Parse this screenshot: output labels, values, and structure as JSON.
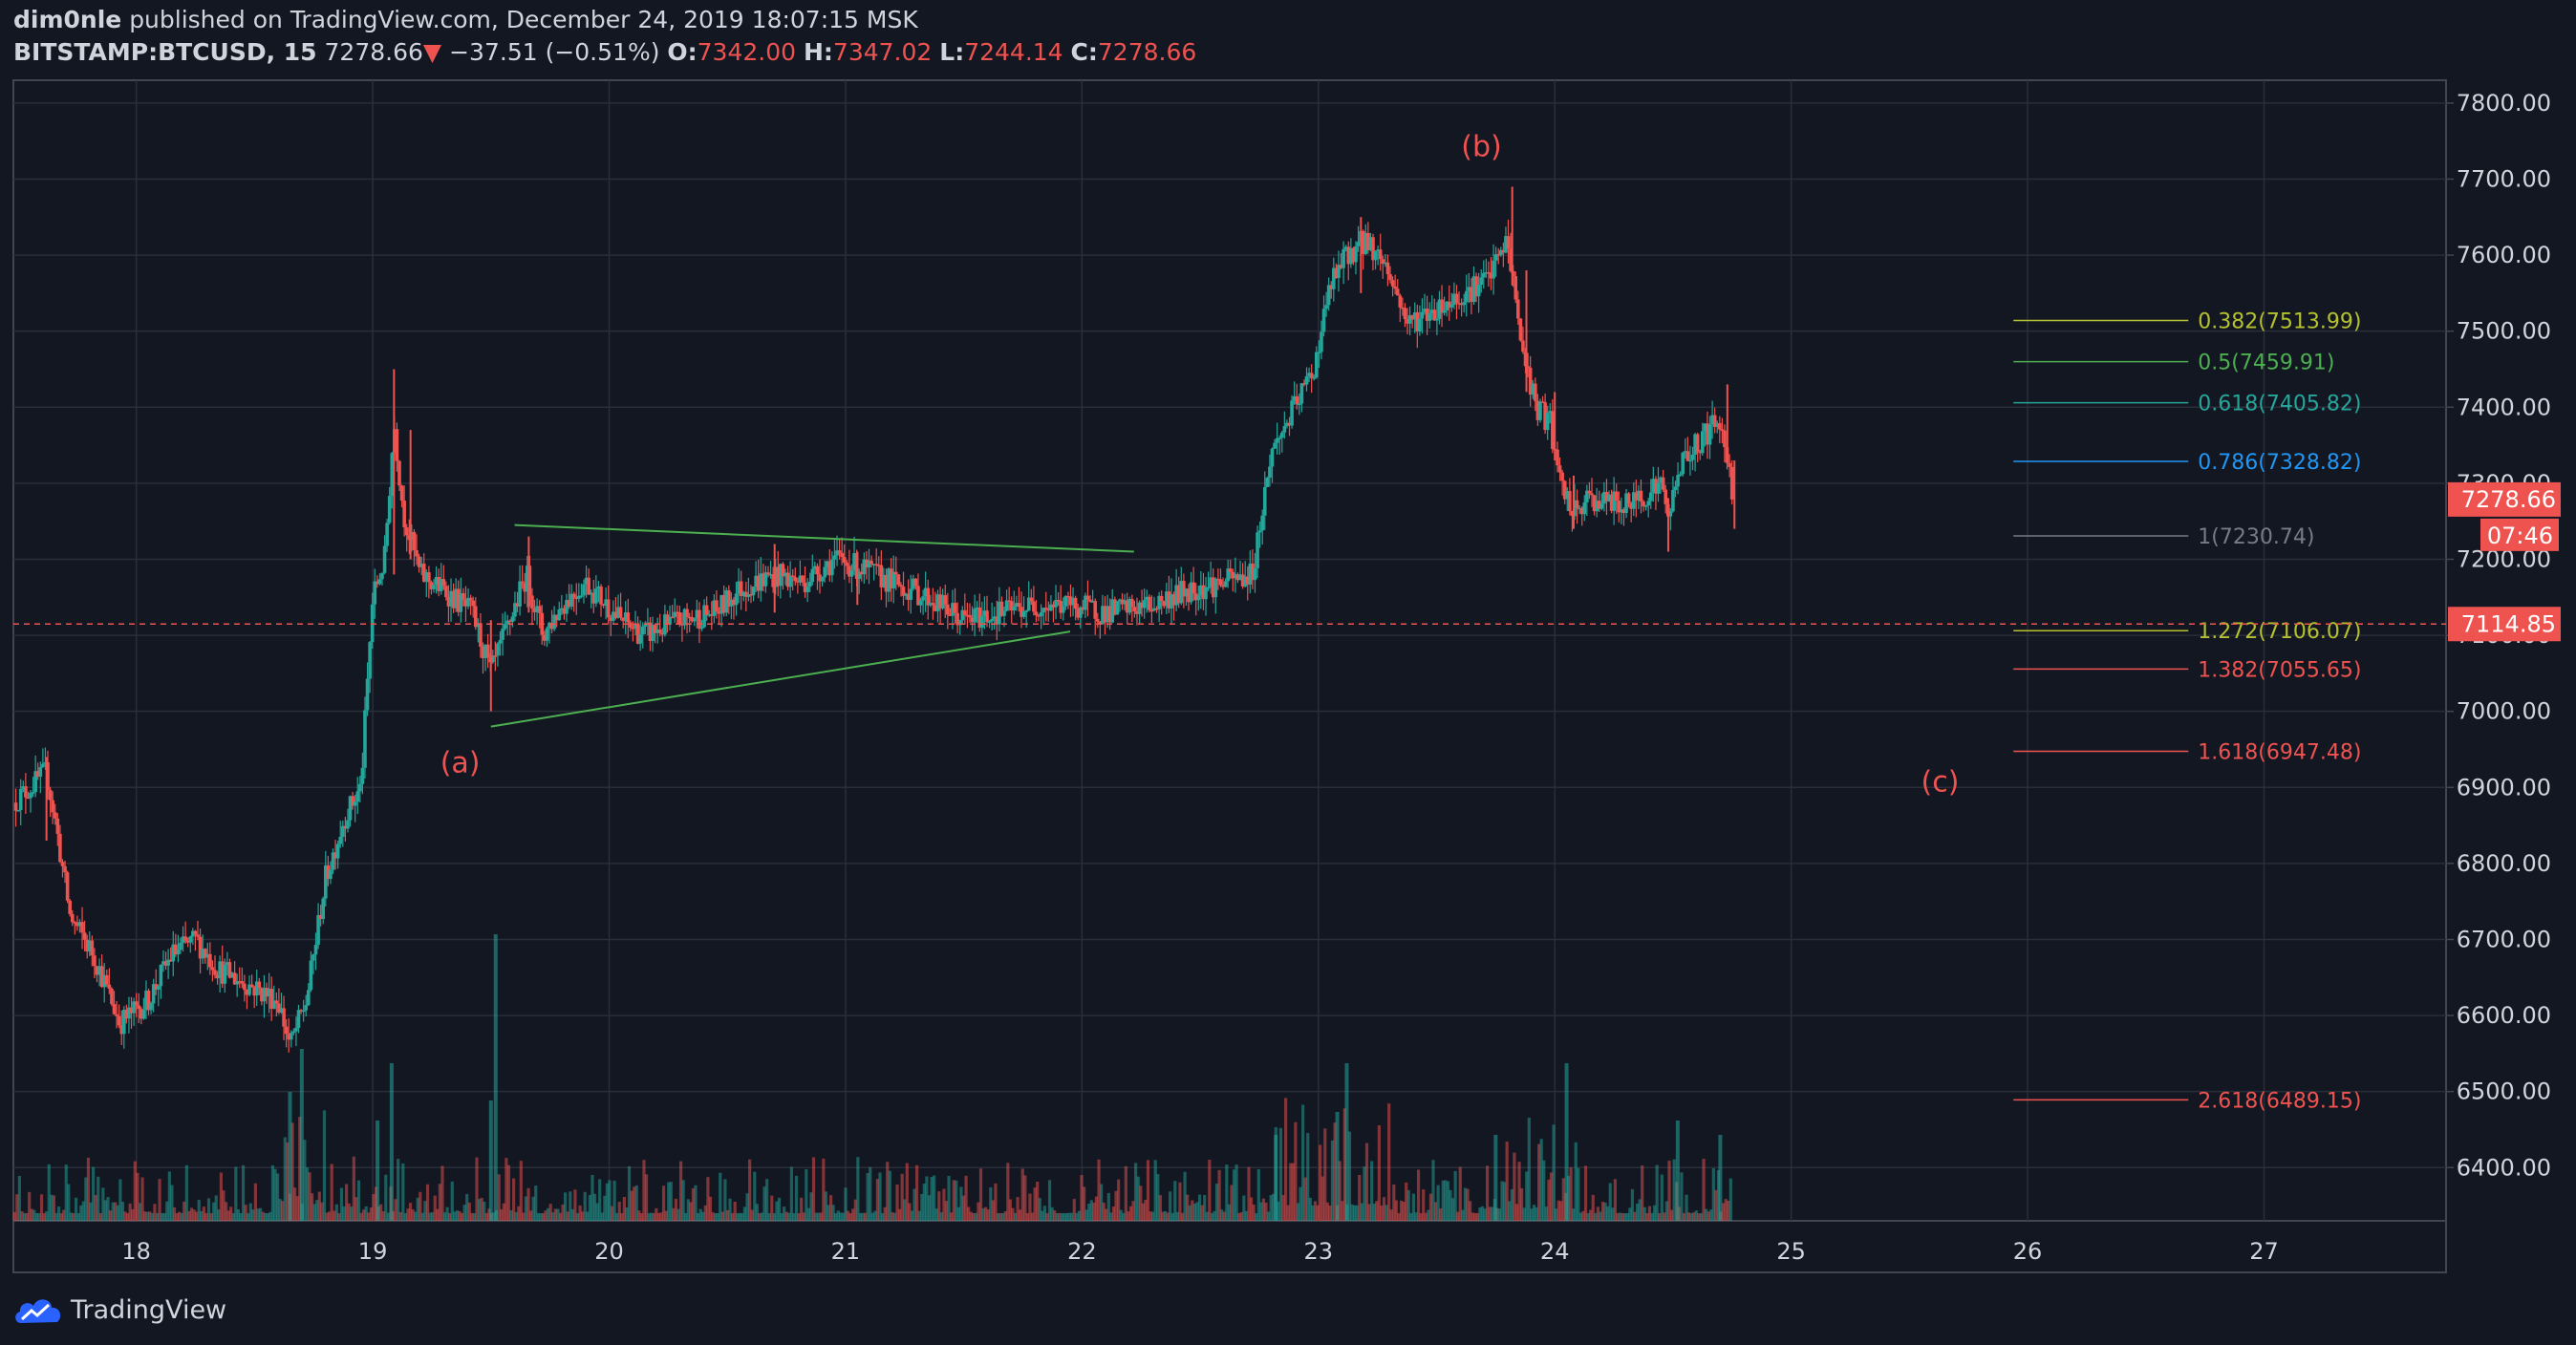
{
  "header": {
    "author": "dim0nle",
    "published_text": "published on TradingView.com, December 24, 2019 18:07:15 MSK",
    "symbol": "BITSTAMP:BTCUSD, 15",
    "last": "7278.66",
    "change_arrow": "▼",
    "change": "−37.51 (−0.51%)",
    "o_label": "O:",
    "o_value": "7342.00",
    "h_label": "H:",
    "h_value": "7347.02",
    "l_label": "L:",
    "l_value": "7244.14",
    "c_label": "C:",
    "c_value": "7278.66"
  },
  "logo": {
    "text": "TradingView",
    "icon": "tradingview-cloud-icon"
  },
  "colors": {
    "background": "#131722",
    "grid": "#2a2e39",
    "up": "#26a69a",
    "down": "#ef5350",
    "text": "#d1d4dc",
    "price_line": "#ef5350",
    "trendline": "#4caf50"
  },
  "chart_data": {
    "type": "candlestick",
    "grid": true,
    "ylim": [
      6330,
      7830
    ],
    "xlim": [
      17.48,
      27.77
    ],
    "x_ticks": [
      18,
      19,
      20,
      21,
      22,
      23,
      24,
      25,
      26,
      27
    ],
    "x_tick_labels": [
      "18",
      "19",
      "20",
      "21",
      "22",
      "23",
      "24",
      "25",
      "26",
      "27"
    ],
    "y_ticks": [
      6400,
      6500,
      6600,
      6700,
      6800,
      6900,
      7000,
      7100,
      7200,
      7300,
      7400,
      7500,
      7600,
      7700,
      7800
    ],
    "y_tick_labels": [
      "6400.00",
      "6500.00",
      "6600.00",
      "6700.00",
      "6800.00",
      "6900.00",
      "7000.00",
      "7100.00",
      "7200.00",
      "7300.00",
      "7400.00",
      "7500.00",
      "7600.00",
      "7700.00",
      "7800.00"
    ],
    "price_path": [
      [
        17.48,
        6880
      ],
      [
        17.62,
        6920
      ],
      [
        17.66,
        6850
      ],
      [
        17.72,
        6730
      ],
      [
        17.82,
        6680
      ],
      [
        17.93,
        6590
      ],
      [
        18.05,
        6620
      ],
      [
        18.15,
        6680
      ],
      [
        18.25,
        6700
      ],
      [
        18.35,
        6660
      ],
      [
        18.48,
        6640
      ],
      [
        18.6,
        6620
      ],
      [
        18.65,
        6560
      ],
      [
        18.72,
        6620
      ],
      [
        18.8,
        6780
      ],
      [
        18.88,
        6860
      ],
      [
        18.95,
        6900
      ],
      [
        19.0,
        7150
      ],
      [
        19.05,
        7200
      ],
      [
        19.09,
        7380
      ],
      [
        19.13,
        7260
      ],
      [
        19.2,
        7180
      ],
      [
        19.3,
        7160
      ],
      [
        19.42,
        7130
      ],
      [
        19.5,
        7050
      ],
      [
        19.58,
        7120
      ],
      [
        19.65,
        7180
      ],
      [
        19.72,
        7100
      ],
      [
        19.8,
        7140
      ],
      [
        19.9,
        7170
      ],
      [
        20.05,
        7120
      ],
      [
        20.15,
        7100
      ],
      [
        20.3,
        7120
      ],
      [
        20.45,
        7130
      ],
      [
        20.55,
        7160
      ],
      [
        20.7,
        7180
      ],
      [
        20.82,
        7170
      ],
      [
        20.95,
        7200
      ],
      [
        21.05,
        7190
      ],
      [
        21.2,
        7170
      ],
      [
        21.35,
        7150
      ],
      [
        21.5,
        7120
      ],
      [
        21.65,
        7130
      ],
      [
        21.8,
        7140
      ],
      [
        21.95,
        7140
      ],
      [
        22.1,
        7130
      ],
      [
        22.3,
        7140
      ],
      [
        22.45,
        7160
      ],
      [
        22.6,
        7170
      ],
      [
        22.72,
        7180
      ],
      [
        22.8,
        7340
      ],
      [
        22.9,
        7400
      ],
      [
        22.98,
        7450
      ],
      [
        23.05,
        7560
      ],
      [
        23.12,
        7600
      ],
      [
        23.2,
        7620
      ],
      [
        23.28,
        7590
      ],
      [
        23.38,
        7510
      ],
      [
        23.5,
        7530
      ],
      [
        23.62,
        7550
      ],
      [
        23.72,
        7570
      ],
      [
        23.8,
        7620
      ],
      [
        23.86,
        7480
      ],
      [
        23.92,
        7400
      ],
      [
        23.98,
        7380
      ],
      [
        24.02,
        7300
      ],
      [
        24.08,
        7260
      ],
      [
        24.15,
        7280
      ],
      [
        24.3,
        7270
      ],
      [
        24.45,
        7300
      ],
      [
        24.48,
        7250
      ],
      [
        24.52,
        7320
      ],
      [
        24.6,
        7350
      ],
      [
        24.68,
        7380
      ],
      [
        24.72,
        7360
      ],
      [
        24.75,
        7279
      ]
    ],
    "spikes": [
      [
        17.62,
        6940,
        6830
      ],
      [
        19.09,
        7450,
        7180
      ],
      [
        19.16,
        7370,
        7200
      ],
      [
        19.5,
        7120,
        7000
      ],
      [
        19.66,
        7230,
        7130
      ],
      [
        20.7,
        7220,
        7130
      ],
      [
        21.05,
        7210,
        7140
      ],
      [
        23.18,
        7650,
        7550
      ],
      [
        23.82,
        7690,
        7560
      ],
      [
        23.88,
        7580,
        7420
      ],
      [
        24.0,
        7420,
        7330
      ],
      [
        24.08,
        7310,
        7240
      ],
      [
        24.48,
        7280,
        7210
      ],
      [
        24.73,
        7430,
        7340
      ],
      [
        24.76,
        7330,
        7240
      ]
    ],
    "volume_spikes": [
      [
        18.7,
        0.6
      ],
      [
        18.65,
        0.45
      ],
      [
        19.02,
        0.35
      ],
      [
        19.08,
        0.55
      ],
      [
        19.5,
        0.42
      ],
      [
        19.52,
        1.0
      ],
      [
        22.82,
        0.3
      ],
      [
        23.12,
        0.55
      ],
      [
        23.08,
        0.38
      ],
      [
        23.75,
        0.3
      ],
      [
        24.05,
        0.55
      ],
      [
        24.52,
        0.35
      ],
      [
        24.7,
        0.3
      ]
    ],
    "trendlines": [
      {
        "from": [
          19.6,
          7245
        ],
        "to": [
          22.22,
          7210
        ]
      },
      {
        "from": [
          19.5,
          6980
        ],
        "to": [
          21.95,
          7105
        ]
      }
    ],
    "price_line": {
      "value": 7114.85,
      "label": "7114.85"
    },
    "last_price": {
      "value": 7278.66,
      "label": "7278.66",
      "countdown": "07:46"
    },
    "fib_levels": [
      {
        "ratio": "0.382",
        "value": 7513.99,
        "label": "0.382(7513.99)",
        "color": "#b5c12e"
      },
      {
        "ratio": "0.5",
        "value": 7459.91,
        "label": "0.5(7459.91)",
        "color": "#4caf50"
      },
      {
        "ratio": "0.618",
        "value": 7405.82,
        "label": "0.618(7405.82)",
        "color": "#26a69a"
      },
      {
        "ratio": "0.786",
        "value": 7328.82,
        "label": "0.786(7328.82)",
        "color": "#2196f3"
      },
      {
        "ratio": "1",
        "value": 7230.74,
        "label": "1(7230.74)",
        "color": "#787b86"
      },
      {
        "ratio": "1.272",
        "value": 7106.07,
        "label": "1.272(7106.07)",
        "color": "#b5c12e"
      },
      {
        "ratio": "1.382",
        "value": 7055.65,
        "label": "1.382(7055.65)",
        "color": "#ef5350"
      },
      {
        "ratio": "1.618",
        "value": 6947.48,
        "label": "1.618(6947.48)",
        "color": "#ef5350"
      },
      {
        "ratio": "2.618",
        "value": 6489.15,
        "label": "2.618(6489.15)",
        "color": "#ef5350"
      }
    ],
    "fib_x_range": [
      25.94,
      26.68
    ],
    "wave_labels": [
      {
        "text": "(a)",
        "x": 19.37,
        "y": 6920
      },
      {
        "text": "(b)",
        "x": 23.69,
        "y": 7730
      },
      {
        "text": "(c)",
        "x": 25.63,
        "y": 6895
      }
    ]
  }
}
